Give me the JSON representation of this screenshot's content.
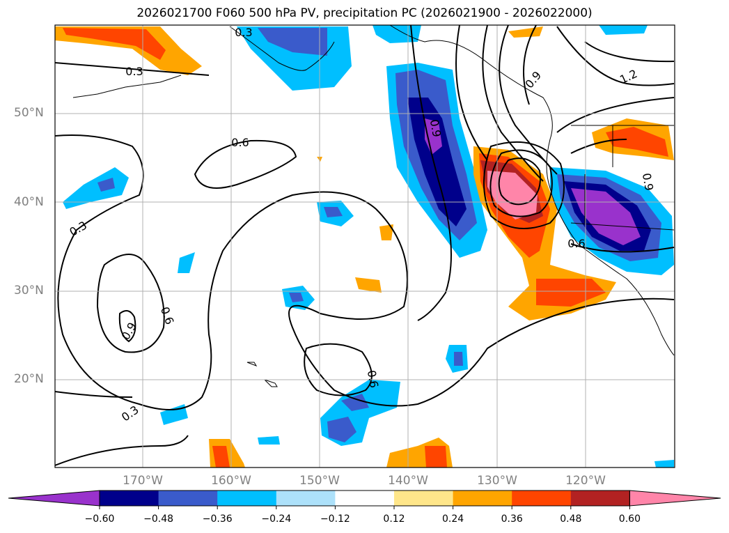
{
  "title": "2026021700 F060 500 hPa PV, precipitation PC (2026021900 - 2026022000)",
  "latitude_labels": [
    "50°N",
    "40°N",
    "30°N",
    "20°N"
  ],
  "longitude_labels": [
    "170°W",
    "160°W",
    "150°W",
    "140°W",
    "130°W",
    "120°W"
  ],
  "contour_labels": [
    "0.3",
    "0.6",
    "0.3",
    "0.9",
    "0.6",
    "0.9",
    "0.3",
    "0.6",
    "0.3",
    "0.9",
    "1.2",
    "0.6",
    "0.9"
  ],
  "colorbar": {
    "levels": [
      "−0.60",
      "−0.48",
      "−0.36",
      "−0.24",
      "−0.12",
      "0.12",
      "0.24",
      "0.36",
      "0.48",
      "0.60"
    ],
    "colors": [
      "#9932CC",
      "#00008B",
      "#3A5BCB",
      "#00BFFF",
      "#ADE1FA",
      "#FFFFFF",
      "#FFE68A",
      "#FFA500",
      "#FF4500",
      "#B22222",
      "#FF85A9"
    ]
  }
}
